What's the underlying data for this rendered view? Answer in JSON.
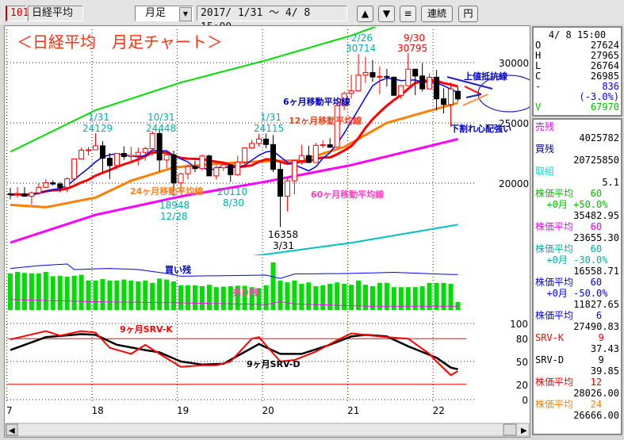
{
  "toolbar": {
    "code": "101",
    "name": "日経平均",
    "period": "月足",
    "range": "2017/ 1/31 ～  4/ 8 15:00",
    "up_button": "▲",
    "down_button": "▼",
    "menu_button": "≡",
    "continuous_button": "連続",
    "yen_button": "円"
  },
  "info": {
    "date": "4/ 8 15:00",
    "rows": [
      {
        "label": "O",
        "value": "27624",
        "color": "#000000"
      },
      {
        "label": "H",
        "value": "27965",
        "color": "#000000"
      },
      {
        "label": "L",
        "value": "26764",
        "color": "#000000"
      },
      {
        "label": "C",
        "value": "26985",
        "color": "#000000"
      },
      {
        "label": "-",
        "value": "836",
        "color": "#0000ff"
      },
      {
        "label": "",
        "value": "(-3.0%)",
        "color": "#0000ff"
      },
      {
        "label": "V",
        "value": "67970",
        "color": "#00c000"
      }
    ]
  },
  "indicators": [
    {
      "label": "売残",
      "color": "#ff00ff",
      "value": "4025782"
    },
    {
      "label": "買残",
      "color": "#000080",
      "value": "20725850"
    },
    {
      "label": "取組",
      "color": "#00e0e0",
      "value": "5.1"
    },
    {
      "label": "株価平均   60",
      "color": "#00c000",
      "sub": "  +0月 +50.0%",
      "value": "35482.95"
    },
    {
      "label": "株価平均   60",
      "color": "#ff00ff",
      "value": "23655.30"
    },
    {
      "label": "株価平均   60",
      "color": "#00b0b0",
      "sub": "  +0月 -30.0%",
      "value": "16558.71"
    },
    {
      "label": "株価平均   60",
      "color": "#0000ff",
      "sub": "  +0月 -50.0%",
      "value": "11827.65"
    },
    {
      "label": "株価平均    6",
      "color": "#0000ff",
      "value": "27490.83"
    },
    {
      "label": "SRV-K      9",
      "color": "#ff0000",
      "value": "37.43"
    },
    {
      "label": "SRV-D      9",
      "color": "#000000",
      "value": "39.85"
    },
    {
      "label": "株価平均   12",
      "color": "#ff0000",
      "value": "28026.00"
    },
    {
      "label": "株価平均   24",
      "color": "#ff8000",
      "value": "26666.00"
    }
  ],
  "chart_data": {
    "type": "candlestick",
    "title": "＜日経平均　月足チャート＞",
    "price_ticks": [
      20000,
      25000,
      30000
    ],
    "srv_ticks": [
      100,
      80,
      50,
      20,
      0
    ],
    "srv_reference_lines": [
      80,
      20
    ],
    "x_tick_labels": [
      "7",
      "18",
      "19",
      "20",
      "21",
      "22"
    ],
    "grid": true,
    "colors": {
      "up": "#ff0000",
      "down": "#000000",
      "ma6": "#0000ff",
      "ma12": "#ff0000",
      "ma24": "#ff8000",
      "ma60": "#ff00ff",
      "ma60_plus50": "#00e000",
      "ma60_minus30": "#00c0c0",
      "volume": "#00dd00",
      "buy_remain": "#0000ff",
      "sell_remain": "#ff00ff",
      "srv_k": "#ff0000",
      "srv_d": "#000000"
    },
    "start_month": "2017/01",
    "ohlc": [
      [
        19114,
        19615,
        18650,
        19041
      ],
      [
        19041,
        19668,
        18805,
        19119
      ],
      [
        19119,
        19668,
        18909,
        18909
      ],
      [
        18909,
        19289,
        18224,
        19197
      ],
      [
        19197,
        19999,
        19197,
        19650
      ],
      [
        19650,
        20318,
        19590,
        20033
      ],
      [
        20033,
        20230,
        19800,
        19925
      ],
      [
        19925,
        20080,
        19239,
        19646
      ],
      [
        19646,
        20481,
        19250,
        20356
      ],
      [
        20356,
        22011,
        20356,
        22011
      ],
      [
        22011,
        22937,
        21972,
        22724
      ],
      [
        22724,
        23000,
        22297,
        22764
      ],
      [
        22764,
        24129,
        22764,
        23098
      ],
      [
        23098,
        23486,
        20950,
        22068
      ],
      [
        22068,
        22502,
        20347,
        21454
      ],
      [
        21454,
        22494,
        21139,
        22467
      ],
      [
        22467,
        23050,
        21931,
        22201
      ],
      [
        22201,
        23011,
        21877,
        22304
      ],
      [
        22304,
        22949,
        21462,
        22553
      ],
      [
        22553,
        23032,
        21851,
        22865
      ],
      [
        22865,
        24306,
        22308,
        24120
      ],
      [
        24120,
        24448,
        20971,
        21920
      ],
      [
        21920,
        22698,
        21243,
        22351
      ],
      [
        22351,
        22698,
        18948,
        20014
      ],
      [
        20014,
        20874,
        19241,
        20773
      ],
      [
        20773,
        21556,
        20315,
        21385
      ],
      [
        21385,
        21860,
        20911,
        21205
      ],
      [
        21205,
        22362,
        21068,
        22258
      ],
      [
        22258,
        22362,
        20601,
        20601
      ],
      [
        20601,
        21479,
        20289,
        21275
      ],
      [
        21275,
        21823,
        21003,
        21521
      ],
      [
        21521,
        21540,
        20110,
        20704
      ],
      [
        20704,
        22255,
        20625,
        21755
      ],
      [
        21755,
        22974,
        21276,
        22927
      ],
      [
        22927,
        23591,
        22850,
        23293
      ],
      [
        23293,
        24091,
        23044,
        23656
      ],
      [
        23656,
        24115,
        22892,
        23205
      ],
      [
        23205,
        23995,
        20916,
        21142
      ],
      [
        21142,
        21719,
        16358,
        18917
      ],
      [
        18917,
        20365,
        17646,
        20193
      ],
      [
        20193,
        21955,
        19074,
        21877
      ],
      [
        21877,
        23185,
        21529,
        22288
      ],
      [
        22288,
        23113,
        21710,
        21710
      ],
      [
        21710,
        23338,
        21710,
        23139
      ],
      [
        23139,
        23564,
        22908,
        23185
      ],
      [
        23185,
        23725,
        22948,
        22977
      ],
      [
        22977,
        26890,
        22948,
        26433
      ],
      [
        26433,
        27602,
        26047,
        27444
      ],
      [
        27444,
        28979,
        27002,
        27663
      ],
      [
        27663,
        30714,
        27663,
        28966
      ],
      [
        28966,
        30485,
        28308,
        29178
      ],
      [
        29178,
        30208,
        28419,
        28812
      ],
      [
        28812,
        29685,
        27385,
        28860
      ],
      [
        28860,
        29480,
        28010,
        28791
      ],
      [
        28791,
        28852,
        27272,
        27283
      ],
      [
        27283,
        28139,
        26954,
        28089
      ],
      [
        28089,
        30795,
        28089,
        29452
      ],
      [
        29452,
        29489,
        27293,
        28892
      ],
      [
        28892,
        29960,
        27588,
        27821
      ],
      [
        27821,
        29121,
        27893,
        28791
      ],
      [
        28791,
        29388,
        26044,
        27001
      ],
      [
        27001,
        27880,
        25775,
        26526
      ],
      [
        26526,
        28338,
        24681,
        27821
      ],
      [
        27624,
        27965,
        26764,
        26985
      ]
    ],
    "ma24": [
      [
        "2017/01",
        18200
      ],
      [
        "2017/06",
        18000
      ],
      [
        "2018/01",
        18800
      ],
      [
        "2018/06",
        20200
      ],
      [
        "2018/12",
        21300
      ],
      [
        "2019/06",
        21600
      ],
      [
        "2019/12",
        21800
      ],
      [
        "2020/06",
        21900
      ],
      [
        "2020/12",
        23000
      ],
      [
        "2021/06",
        25000
      ],
      [
        "2021/12",
        26000
      ],
      [
        "2022/04",
        26666
      ]
    ],
    "ma60": [
      [
        "2017/01",
        15066
      ],
      [
        "2018/01",
        17370
      ],
      [
        "2019/01",
        18900
      ],
      [
        "2020/01",
        20130
      ],
      [
        "2021/01",
        21500
      ],
      [
        "2022/04",
        23655
      ]
    ],
    "volume": [
      77,
      80,
      78,
      77,
      77,
      80,
      71,
      72,
      70,
      72,
      74,
      62,
      62,
      65,
      62,
      62,
      64,
      62,
      60,
      62,
      57,
      66,
      64,
      60,
      52,
      52,
      52,
      50,
      53,
      48,
      49,
      50,
      51,
      51,
      48,
      46,
      52,
      100,
      62,
      58,
      62,
      55,
      58,
      50,
      52,
      55,
      58,
      55,
      53,
      62,
      53,
      50,
      57,
      57,
      48,
      48,
      48,
      48,
      50,
      57,
      57,
      57,
      55,
      17
    ],
    "buy_remain": [
      [
        "2017/01",
        82
      ],
      [
        "2017/05",
        87
      ],
      [
        "2017/09",
        90
      ],
      [
        "2017/10",
        80
      ],
      [
        "2018/03",
        82
      ],
      [
        "2018/07",
        80
      ],
      [
        "2018/11",
        73
      ],
      [
        "2019/01",
        68
      ],
      [
        "2020/01",
        70
      ],
      [
        "2020/03",
        64
      ],
      [
        "2020/05",
        72
      ],
      [
        "2021/01",
        73
      ],
      [
        "2021/07",
        75
      ],
      [
        "2022/01",
        72
      ],
      [
        "2022/04",
        71
      ]
    ],
    "sell_remain": [
      [
        "2017/01",
        26
      ],
      [
        "2018/01",
        22
      ],
      [
        "2019/01",
        20
      ],
      [
        "2020/01",
        17
      ],
      [
        "2020/03",
        22
      ],
      [
        "2020/05",
        18
      ],
      [
        "2021/03",
        14
      ],
      [
        "2022/04",
        14
      ]
    ],
    "srv_k": [
      [
        "2017/01",
        79
      ],
      [
        "2017/06",
        90
      ],
      [
        "2017/08",
        84
      ],
      [
        "2017/11",
        90
      ],
      [
        "2018/01",
        88
      ],
      [
        "2018/03",
        68
      ],
      [
        "2018/06",
        60
      ],
      [
        "2018/08",
        72
      ],
      [
        "2018/10",
        60
      ],
      [
        "2019/01",
        43
      ],
      [
        "2019/04",
        45
      ],
      [
        "2019/06",
        45
      ],
      [
        "2019/08",
        50
      ],
      [
        "2019/11",
        80
      ],
      [
        "2019/12",
        82
      ],
      [
        "2020/03",
        50
      ],
      [
        "2020/05",
        52
      ],
      [
        "2020/08",
        63
      ],
      [
        "2020/11",
        78
      ],
      [
        "2021/01",
        87
      ],
      [
        "2021/03",
        85
      ],
      [
        "2021/06",
        82
      ],
      [
        "2021/09",
        80
      ],
      [
        "2021/12",
        60
      ],
      [
        "2022/01",
        50
      ],
      [
        "2022/03",
        32
      ],
      [
        "2022/04",
        37.43
      ]
    ],
    "srv_d": [
      [
        "2017/01",
        65
      ],
      [
        "2017/06",
        82
      ],
      [
        "2017/11",
        86
      ],
      [
        "2018/01",
        85
      ],
      [
        "2018/04",
        72
      ],
      [
        "2018/08",
        65
      ],
      [
        "2018/10",
        62
      ],
      [
        "2019/01",
        50
      ],
      [
        "2019/04",
        46
      ],
      [
        "2019/07",
        47
      ],
      [
        "2019/12",
        73
      ],
      [
        "2020/03",
        60
      ],
      [
        "2020/06",
        60
      ],
      [
        "2020/10",
        72
      ],
      [
        "2021/01",
        83
      ],
      [
        "2021/03",
        85
      ],
      [
        "2021/06",
        83
      ],
      [
        "2021/09",
        70
      ],
      [
        "2022/01",
        55
      ],
      [
        "2022/03",
        42
      ],
      [
        "2022/04",
        39.85
      ]
    ],
    "annotations": {
      "h1": [
        "1/31",
        "24129"
      ],
      "h2": [
        "10/31",
        "24448"
      ],
      "l1": [
        "18948",
        "12/28"
      ],
      "l2": [
        "20110",
        "8/30"
      ],
      "h3": [
        "1/31",
        "24115"
      ],
      "l3": [
        "16358",
        "3/31"
      ],
      "h4": [
        "2/26",
        "30714"
      ],
      "h5": [
        "9/30",
        "30795"
      ],
      "ma6": "6ヶ月移動平均線",
      "ma12": "12ヶ月移動平均線",
      "ma24": "24ヶ月移動平均線",
      "ma60": "60ヶ月移動平均線",
      "resistance": "上値抵抗線",
      "breakdown": "下割れ心配強い",
      "buy": "買い残",
      "sell": "売り残",
      "srv_k": "9ヶ月SRV-K",
      "srv_d": "9ヶ月SRV-D"
    }
  }
}
